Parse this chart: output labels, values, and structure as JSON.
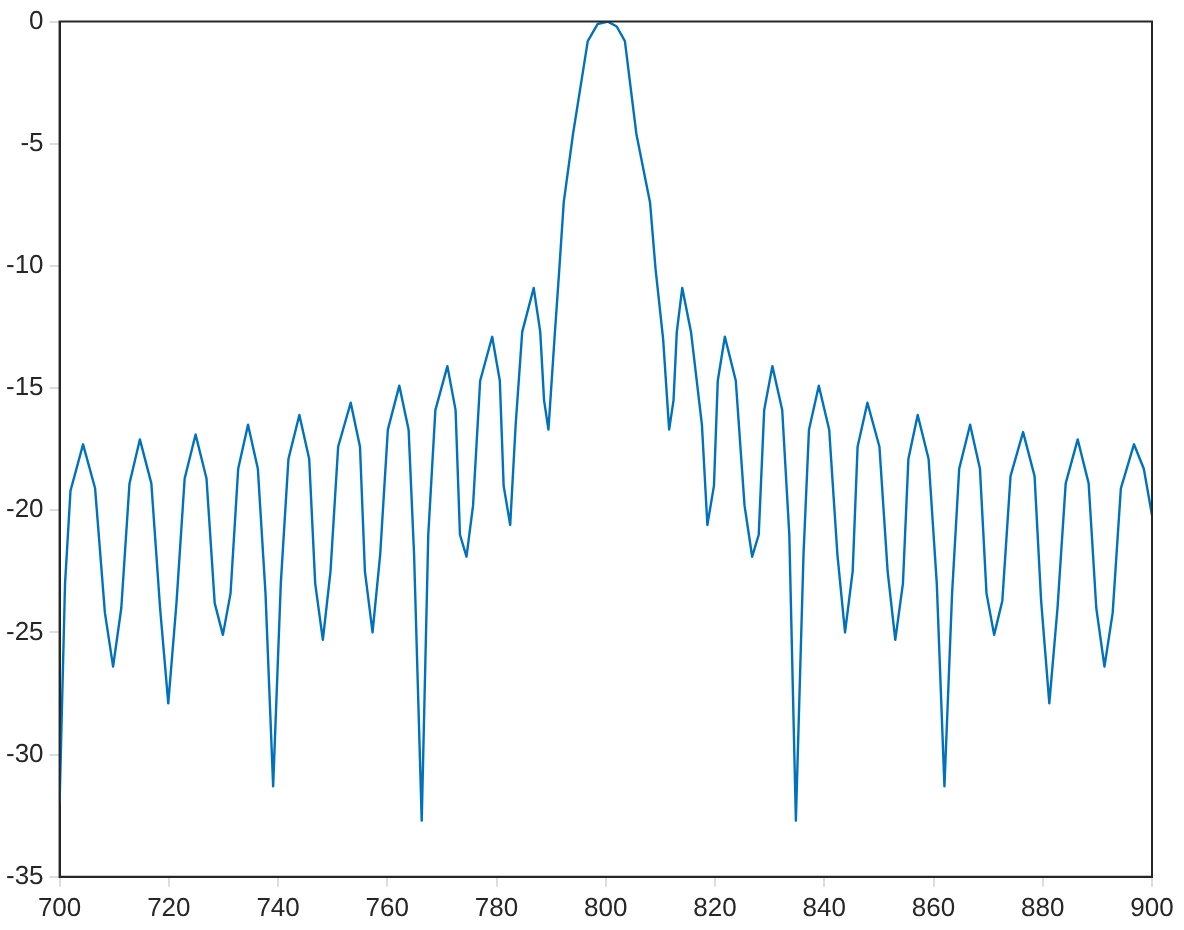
{
  "chart_data": {
    "type": "line",
    "marker": "none",
    "line_style": "solid",
    "grid": false,
    "legend": false,
    "xlim": [
      700,
      900
    ],
    "xticks": [
      700,
      720,
      740,
      760,
      780,
      800,
      820,
      840,
      860,
      880,
      900
    ],
    "ylim": [
      -35,
      0
    ],
    "yticks": [
      -35,
      -30,
      -25,
      -20,
      -15,
      -10,
      -5,
      0
    ],
    "series": [
      {
        "color": "#0072bd",
        "x": [
          700,
          701,
          702,
          704.3,
          706.5,
          708.3,
          709.8,
          711.3,
          712.8,
          714.7,
          716.8,
          718.4,
          719.9,
          721.4,
          722.9,
          724.9,
          726.9,
          728.4,
          729.9,
          731.3,
          732.7,
          734.5,
          736.3,
          737.7,
          739.1,
          740.5,
          741.9,
          743.9,
          745.7,
          746.8,
          748.2,
          749.6,
          751.0,
          753.3,
          755.0,
          755.9,
          757.3,
          758.7,
          760.1,
          762.2,
          763.9,
          764.9,
          766.3,
          767.5,
          768.8,
          771.0,
          772.5,
          773.3,
          774.5,
          775.7,
          777.0,
          779.2,
          780.6,
          781.3,
          782.5,
          783.5,
          784.7,
          786.8,
          788.0,
          788.7,
          789.5,
          790.6,
          791.5,
          792.3,
          794.0,
          796.7,
          798.5,
          800.4,
          802.0,
          803.5,
          805.6,
          808.1,
          809.1,
          810.5,
          811.6,
          812.4,
          813.0,
          814.0,
          815.6,
          817.6,
          818.6,
          819.8,
          820.5,
          821.8,
          823.8,
          825.4,
          826.8,
          828.0,
          829.0,
          830.5,
          832.3,
          833.6,
          834.8,
          836.2,
          837.2,
          839.0,
          840.9,
          842.4,
          843.8,
          845.2,
          846.1,
          847.9,
          850.1,
          851.6,
          853.0,
          854.4,
          855.4,
          857.1,
          859.1,
          860.6,
          862.0,
          863.4,
          864.7,
          866.7,
          868.5,
          869.7,
          871.1,
          872.6,
          874.1,
          876.4,
          878.5,
          879.7,
          881.2,
          882.7,
          884.2,
          886.4,
          888.4,
          889.8,
          891.3,
          892.8,
          894.3,
          896.7,
          898.5,
          900
        ],
        "values": [
          -32,
          -23,
          -19.2,
          -17.3,
          -19.1,
          -24.2,
          -26.4,
          -24.0,
          -18.9,
          -17.1,
          -18.9,
          -24.0,
          -27.9,
          -23.8,
          -18.7,
          -16.9,
          -18.7,
          -23.8,
          -25.1,
          -23.4,
          -18.3,
          -16.5,
          -18.3,
          -23.4,
          -31.3,
          -23.0,
          -17.9,
          -16.1,
          -17.9,
          -23.0,
          -25.3,
          -22.5,
          -17.4,
          -15.6,
          -17.4,
          -22.5,
          -25.0,
          -21.8,
          -16.7,
          -14.9,
          -16.7,
          -21.8,
          -32.7,
          -21.0,
          -15.9,
          -14.1,
          -15.9,
          -21.0,
          -21.9,
          -19.8,
          -14.7,
          -12.9,
          -14.7,
          -19.0,
          -20.6,
          -16.5,
          -12.7,
          -10.9,
          -12.7,
          -15.5,
          -16.7,
          -13,
          -10.1,
          -7.4,
          -4.6,
          -0.8,
          -0.1,
          0,
          -0.2,
          -0.8,
          -4.6,
          -7.4,
          -10.1,
          -13,
          -16.7,
          -15.5,
          -12.7,
          -10.9,
          -12.7,
          -16.5,
          -20.6,
          -19.0,
          -14.7,
          -12.9,
          -14.7,
          -19.8,
          -21.9,
          -21.0,
          -15.9,
          -14.1,
          -15.9,
          -21.0,
          -32.7,
          -21.8,
          -16.7,
          -14.9,
          -16.7,
          -21.8,
          -25.0,
          -22.5,
          -17.4,
          -15.6,
          -17.4,
          -22.5,
          -25.3,
          -23.0,
          -17.9,
          -16.1,
          -17.9,
          -23.0,
          -31.3,
          -23.4,
          -18.3,
          -16.5,
          -18.3,
          -23.4,
          -25.1,
          -23.7,
          -18.6,
          -16.8,
          -18.6,
          -23.7,
          -27.9,
          -24.0,
          -18.9,
          -17.1,
          -18.9,
          -24.0,
          -26.4,
          -24.2,
          -19.1,
          -17.3,
          -18.3,
          -20.2
        ]
      }
    ]
  }
}
